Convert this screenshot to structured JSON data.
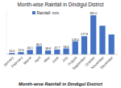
{
  "chart_data": {
    "type": "bar",
    "title": "Month-wise Rainfall in Dindigul District",
    "caption": "Month-wise Rainfall in Dindigul District",
    "categories": [
      "January",
      "February",
      "March",
      "April",
      "May",
      "June",
      "July",
      "August",
      "September",
      "October",
      "November",
      "December"
    ],
    "series": [
      {
        "name": "Rainfall: mm",
        "color": "#4472C4",
        "values": [
          14.0,
          22.6,
          44.1,
          80.5,
          38.8,
          47.7,
          58.6,
          128.4,
          177.8,
          382.0,
          280.0,
          195.0
        ],
        "value_labels": [
          "14.0",
          "22.6",
          "44.1",
          "80.5",
          "38.8",
          "47.7",
          "58.6",
          "128.4",
          "177.8",
          "382.0",
          null,
          null
        ]
      }
    ],
    "ylim": [
      0,
      430
    ],
    "data_labels": true,
    "tick_labels": "x",
    "grid": false,
    "legend": "top"
  }
}
